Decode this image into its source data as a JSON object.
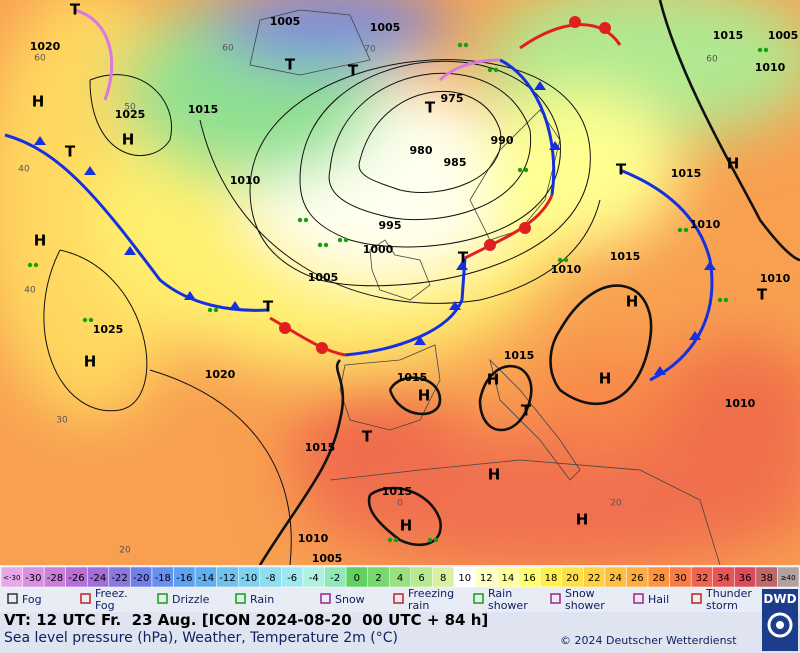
{
  "map": {
    "isobar_labels": [
      "1005",
      "1005",
      "1015",
      "1005",
      "1010",
      "1020",
      "1025",
      "1015",
      "975",
      "990",
      "980",
      "985",
      "1010",
      "1015",
      "995",
      "1000",
      "1010",
      "1010",
      "1015",
      "1005",
      "1010",
      "1025",
      "1015",
      "1020",
      "1015",
      "1010",
      "1015",
      "1015",
      "1010",
      "1005"
    ],
    "pressure_centers": [
      "H",
      "H",
      "H",
      "H",
      "H",
      "H",
      "H",
      "H",
      "H",
      "H",
      "H",
      "H",
      "T",
      "T",
      "T",
      "T",
      "T",
      "T",
      "T",
      "T",
      "T",
      "T",
      "T"
    ],
    "temperature_labels": [
      "60",
      "60",
      "50",
      "40",
      "40",
      "30",
      "20",
      "20",
      "60",
      "70",
      "0"
    ]
  },
  "legend": {
    "temperature_scale": {
      "labels": [
        "<-30",
        "-30",
        "-28",
        "-26",
        "-24",
        "-22",
        "-20",
        "-18",
        "-16",
        "-14",
        "-12",
        "-10",
        "-8",
        "-6",
        "-4",
        "-2",
        "0",
        "2",
        "4",
        "6",
        "8",
        "10",
        "12",
        "14",
        "16",
        "18",
        "20",
        "22",
        "24",
        "26",
        "28",
        "30",
        "32",
        "34",
        "36",
        "38",
        "≥40"
      ],
      "colors": [
        "#e8a8e8",
        "#d890e0",
        "#c880d8",
        "#b870d8",
        "#a070d8",
        "#8878e0",
        "#7080e8",
        "#6890f0",
        "#60a0f0",
        "#60b0f0",
        "#70c0f0",
        "#80d0f0",
        "#90dcf0",
        "#a0e8f0",
        "#b0f0e0",
        "#90e8b8",
        "#60d060",
        "#78d870",
        "#98e080",
        "#b8e890",
        "#d8f0a0",
        "#ffffff",
        "#ffffc8",
        "#ffffa0",
        "#ffff70",
        "#fff050",
        "#ffe048",
        "#ffd040",
        "#ffc040",
        "#ffac40",
        "#ff9440",
        "#f87c48",
        "#f06450",
        "#e85458",
        "#d84c5c",
        "#c06868",
        "#b0a0a0"
      ]
    },
    "weather": [
      "Fog",
      "Freez. Fog",
      "Drizzle",
      "Rain",
      "Snow",
      "Freezing rain",
      "Rain shower",
      "Snow shower",
      "Hail",
      "Thunder storm"
    ]
  },
  "footer": {
    "valid_time": "VT: 12 UTC Fr.  23 Aug. [ICON 2024-08-20  00 UTC + 84 h]",
    "description": "Sea level pressure (hPa), Weather, Temperature 2m (°C)",
    "copyright": "© 2024 Deutscher Wetterdienst",
    "logo": "DWD"
  }
}
